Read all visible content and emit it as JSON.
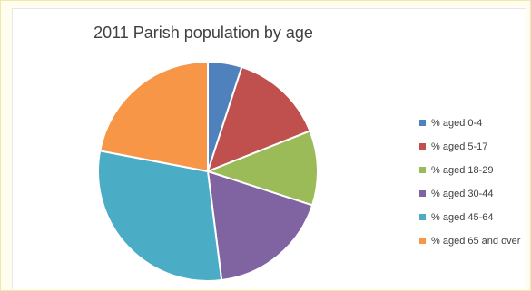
{
  "chart_data": {
    "type": "pie",
    "title": "2011 Parish population by age",
    "legend_position": "right",
    "categories": [
      "% aged 0-4",
      "% aged 5-17",
      "% aged 18-29",
      "% aged 30-44",
      "% aged 45-64",
      "% aged 65 and over"
    ],
    "values": [
      5,
      14,
      11,
      18,
      30,
      22
    ],
    "colors": [
      "#4f81bd",
      "#c0504d",
      "#9bbb59",
      "#8064a2",
      "#4bacc6",
      "#f79646"
    ]
  }
}
